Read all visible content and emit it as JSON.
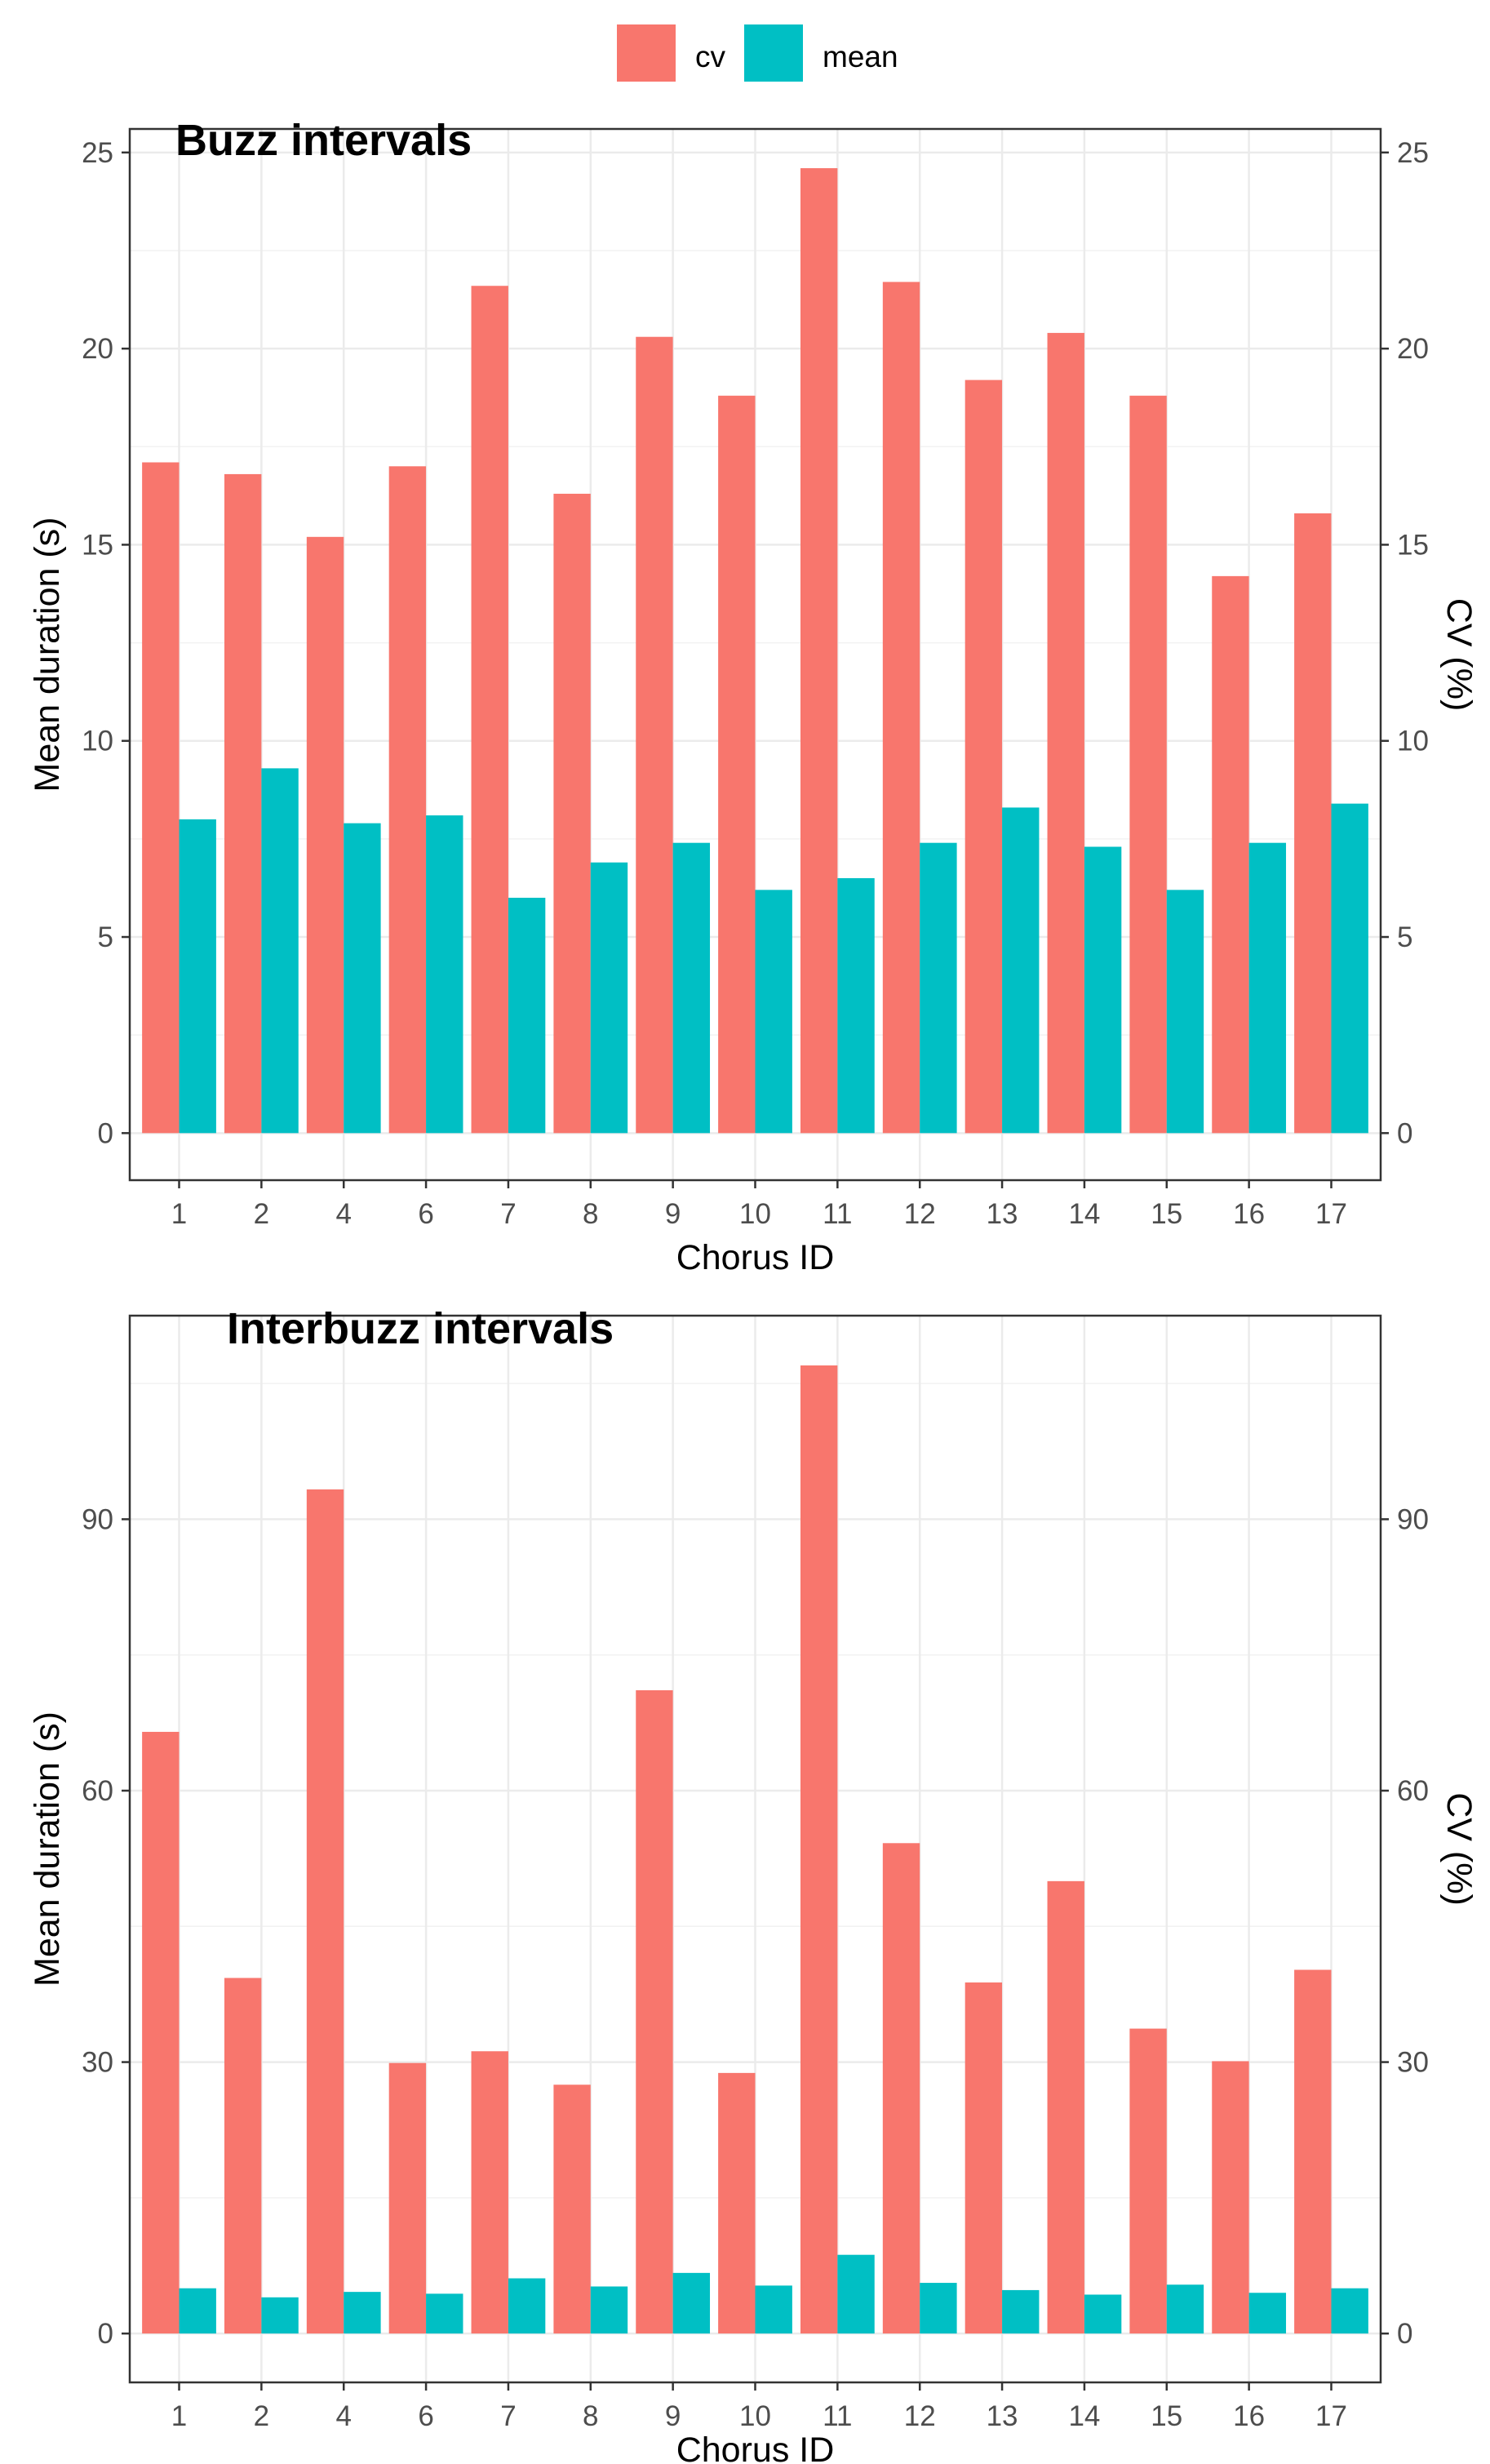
{
  "legend": {
    "items": [
      {
        "key": "cv",
        "label": "cv",
        "color": "#F8766D"
      },
      {
        "key": "mean",
        "label": "mean",
        "color": "#00BFC4"
      }
    ]
  },
  "chart_data": [
    {
      "type": "bar",
      "title": "Buzz intervals",
      "xlabel": "Chorus ID",
      "ylabel": "Mean duration (s)",
      "ylabel_right": "CV (%)",
      "ylim": [
        -1.2,
        25.6
      ],
      "yticks": [
        0,
        5,
        10,
        15,
        20,
        25
      ],
      "yticks_right": [
        0,
        5,
        10,
        15,
        20,
        25
      ],
      "grid": true,
      "categories": [
        "1",
        "2",
        "4",
        "6",
        "7",
        "8",
        "9",
        "10",
        "11",
        "12",
        "13",
        "14",
        "15",
        "16",
        "17"
      ],
      "series": [
        {
          "name": "cv",
          "values": [
            17.1,
            16.8,
            15.2,
            17.0,
            21.6,
            16.3,
            20.3,
            18.8,
            24.6,
            21.7,
            19.2,
            20.4,
            18.8,
            14.2,
            15.8
          ]
        },
        {
          "name": "mean",
          "values": [
            8.0,
            9.3,
            7.9,
            8.1,
            6.0,
            6.9,
            7.4,
            6.2,
            6.5,
            7.4,
            8.3,
            7.3,
            6.2,
            7.4,
            8.4
          ]
        }
      ]
    },
    {
      "type": "bar",
      "title": "Interbuzz intervals",
      "xlabel": "Chorus ID",
      "ylabel": "Mean duration (s)",
      "ylabel_right": "CV (%)",
      "ylim": [
        -5.4,
        112.5
      ],
      "yticks": [
        0,
        30,
        60,
        90
      ],
      "yticks_right": [
        0,
        30,
        60,
        90
      ],
      "grid": true,
      "categories": [
        "1",
        "2",
        "4",
        "6",
        "7",
        "8",
        "9",
        "10",
        "11",
        "12",
        "13",
        "14",
        "15",
        "16",
        "17"
      ],
      "series": [
        {
          "name": "cv",
          "values": [
            66.5,
            39.3,
            93.3,
            29.9,
            31.2,
            27.5,
            71.1,
            28.8,
            107.0,
            54.2,
            38.8,
            50.0,
            33.7,
            30.1,
            40.2
          ]
        },
        {
          "name": "mean",
          "values": [
            5.0,
            4.0,
            4.6,
            4.4,
            6.1,
            5.2,
            6.7,
            5.3,
            8.7,
            5.6,
            4.8,
            4.3,
            5.4,
            4.5,
            5.0
          ]
        }
      ]
    }
  ]
}
